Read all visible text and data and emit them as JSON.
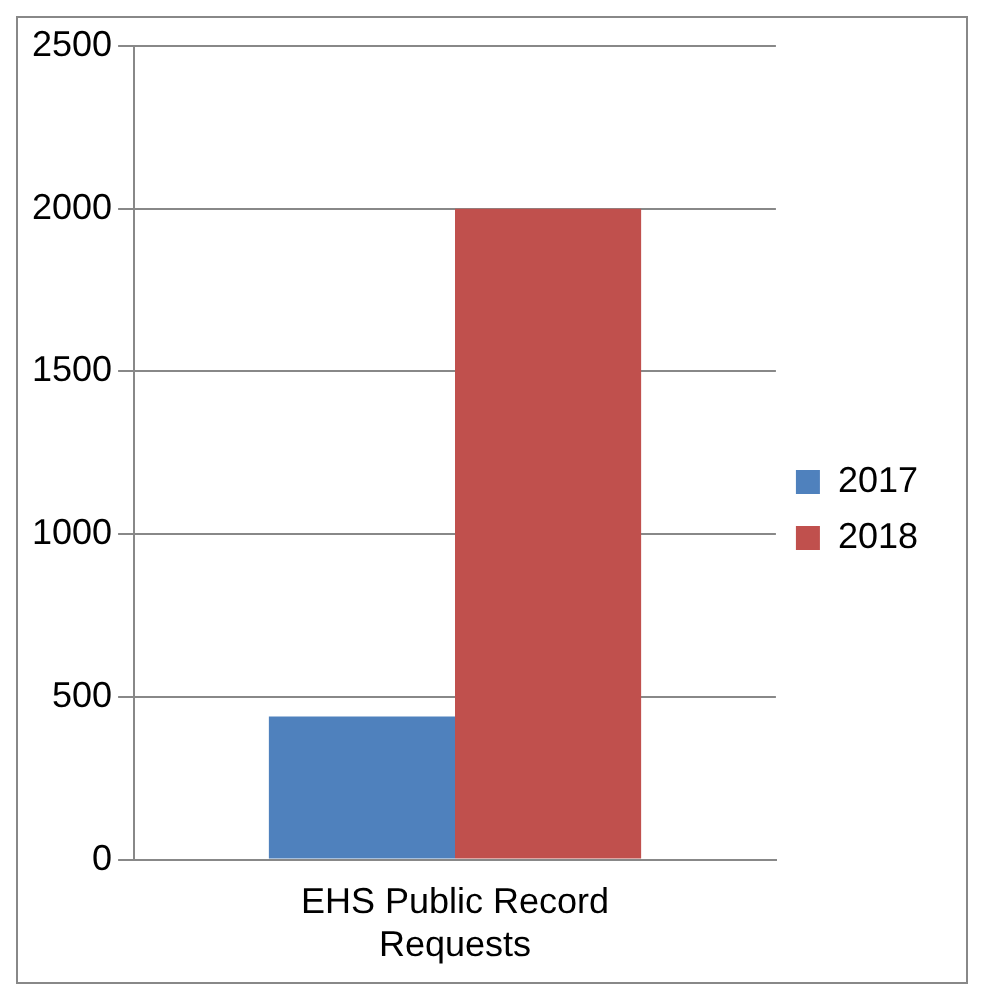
{
  "chart_data": {
    "type": "bar",
    "categories": [
      "EHS Public Record Requests"
    ],
    "series": [
      {
        "name": "2017",
        "color": "#4f81bd",
        "values": [
          440
        ]
      },
      {
        "name": "2018",
        "color": "#c0504d",
        "values": [
          2000
        ]
      }
    ],
    "ylim": [
      0,
      2500
    ],
    "yticks": [
      0,
      500,
      1000,
      1500,
      2000,
      2500
    ],
    "grid": "y",
    "legend": "right"
  }
}
